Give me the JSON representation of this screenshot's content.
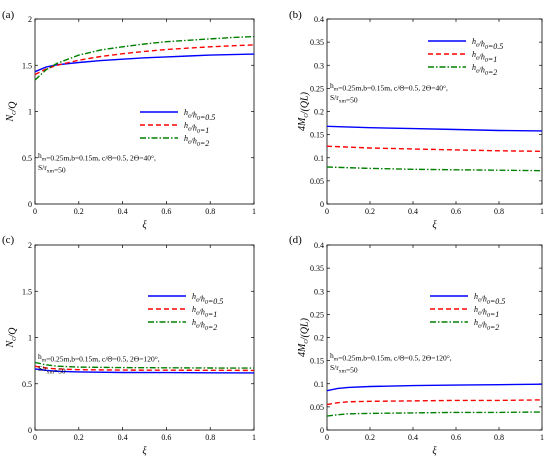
{
  "chart_data": [
    {
      "type": "line",
      "panel_label": "(a)",
      "xlabel": "ξ",
      "ylabel": "N_c/Q",
      "xlim": [
        0,
        1
      ],
      "ylim": [
        0,
        2
      ],
      "xticks": [
        "0",
        "0.2",
        "0.4",
        "0.6",
        "0.8",
        "1"
      ],
      "yticks": [
        "0",
        "0.5",
        "1",
        "1.5",
        "2"
      ],
      "x": [
        0,
        0.05,
        0.1,
        0.2,
        0.3,
        0.4,
        0.5,
        0.6,
        0.7,
        0.8,
        0.9,
        1.0
      ],
      "series": [
        {
          "name": "h_e/h_0=0.5",
          "color": "#0000ff",
          "dash": "solid",
          "values": [
            1.43,
            1.48,
            1.505,
            1.53,
            1.55,
            1.565,
            1.58,
            1.59,
            1.6,
            1.61,
            1.615,
            1.62
          ]
        },
        {
          "name": "h_e/h_0=1",
          "color": "#ff0000",
          "dash": "dashed",
          "values": [
            1.4,
            1.46,
            1.5,
            1.555,
            1.595,
            1.625,
            1.65,
            1.67,
            1.685,
            1.7,
            1.71,
            1.72
          ]
        },
        {
          "name": "h_e/h_0=2",
          "color": "#008000",
          "dash": "dashdot",
          "values": [
            1.34,
            1.45,
            1.52,
            1.61,
            1.665,
            1.7,
            1.73,
            1.755,
            1.77,
            1.785,
            1.8,
            1.81
          ]
        }
      ],
      "annotation": [
        "h_m=0.25m,b=0.15m, c/Θ=0.5, 2Θ=40°,",
        "S/r_xm=50"
      ],
      "legend_position": "center-right"
    },
    {
      "type": "line",
      "panel_label": "(b)",
      "xlabel": "ξ",
      "ylabel": "4M_c/(QL)",
      "xlim": [
        0,
        1
      ],
      "ylim": [
        0,
        0.4
      ],
      "xticks": [
        "0",
        "0.2",
        "0.4",
        "0.6",
        "0.8",
        "1"
      ],
      "yticks": [
        "0",
        "0.05",
        "0.1",
        "0.15",
        "0.2",
        "0.25",
        "0.3",
        "0.35",
        "0.4"
      ],
      "x": [
        0,
        0.2,
        0.4,
        0.6,
        0.8,
        1.0
      ],
      "series": [
        {
          "name": "h_e/h_0=0.5",
          "color": "#0000ff",
          "dash": "solid",
          "values": [
            0.168,
            0.165,
            0.163,
            0.161,
            0.159,
            0.158
          ]
        },
        {
          "name": "h_e/h_0=1",
          "color": "#ff0000",
          "dash": "dashed",
          "values": [
            0.125,
            0.121,
            0.119,
            0.117,
            0.115,
            0.114
          ]
        },
        {
          "name": "h_e/h_0=2",
          "color": "#008000",
          "dash": "dashdot",
          "values": [
            0.08,
            0.077,
            0.075,
            0.074,
            0.073,
            0.072
          ]
        }
      ],
      "annotation": [
        "h_m=0.25m,b=0.15m, c/Θ=0.5, 2Θ=40°,",
        "S/r_xm=50"
      ],
      "legend_position": "top-right"
    },
    {
      "type": "line",
      "panel_label": "(c)",
      "xlabel": "ξ",
      "ylabel": "N_c/Q",
      "xlim": [
        0,
        1
      ],
      "ylim": [
        0,
        2
      ],
      "xticks": [
        "0",
        "0.2",
        "0.4",
        "0.6",
        "0.8",
        "1"
      ],
      "yticks": [
        "0",
        "0.5",
        "1",
        "1.5",
        "2"
      ],
      "x": [
        0,
        0.05,
        0.1,
        0.2,
        0.4,
        0.6,
        0.8,
        1.0
      ],
      "series": [
        {
          "name": "h_e/h_0=0.5",
          "color": "#0000ff",
          "dash": "solid",
          "values": [
            0.66,
            0.645,
            0.635,
            0.628,
            0.622,
            0.62,
            0.618,
            0.617
          ]
        },
        {
          "name": "h_e/h_0=1",
          "color": "#ff0000",
          "dash": "dashed",
          "values": [
            0.69,
            0.67,
            0.66,
            0.652,
            0.648,
            0.646,
            0.645,
            0.644
          ]
        },
        {
          "name": "h_e/h_0=2",
          "color": "#008000",
          "dash": "dashdot",
          "values": [
            0.73,
            0.705,
            0.69,
            0.68,
            0.675,
            0.672,
            0.67,
            0.669
          ]
        }
      ],
      "annotation": [
        "h_m=0.25m,b=0.15m, c/Θ=0.5, 2Θ=120°,",
        "S/r_xm=50"
      ],
      "legend_position": "top-right"
    },
    {
      "type": "line",
      "panel_label": "(d)",
      "xlabel": "ξ",
      "ylabel": "4M_c/(QL)",
      "xlim": [
        0,
        1
      ],
      "ylim": [
        0,
        0.4
      ],
      "xticks": [
        "0",
        "0.2",
        "0.4",
        "0.6",
        "0.8",
        "1"
      ],
      "yticks": [
        "0",
        "0.05",
        "0.1",
        "0.15",
        "0.2",
        "0.25",
        "0.3",
        "0.35",
        "0.4"
      ],
      "x": [
        0,
        0.05,
        0.1,
        0.2,
        0.4,
        0.6,
        0.8,
        1.0
      ],
      "series": [
        {
          "name": "h_e/h_0=0.5",
          "color": "#0000ff",
          "dash": "solid",
          "values": [
            0.085,
            0.09,
            0.092,
            0.094,
            0.096,
            0.097,
            0.098,
            0.099
          ]
        },
        {
          "name": "h_e/h_0=1",
          "color": "#ff0000",
          "dash": "dashed",
          "values": [
            0.055,
            0.059,
            0.061,
            0.062,
            0.063,
            0.064,
            0.064,
            0.065
          ]
        },
        {
          "name": "h_e/h_0=2",
          "color": "#008000",
          "dash": "dashdot",
          "values": [
            0.03,
            0.033,
            0.035,
            0.036,
            0.037,
            0.038,
            0.038,
            0.039
          ]
        }
      ],
      "annotation": [
        "h_m=0.25m,b=0.15m, c/Θ=0.5, 2Θ=120°,",
        "S/r_xm=50"
      ],
      "legend_position": "top-right"
    }
  ]
}
